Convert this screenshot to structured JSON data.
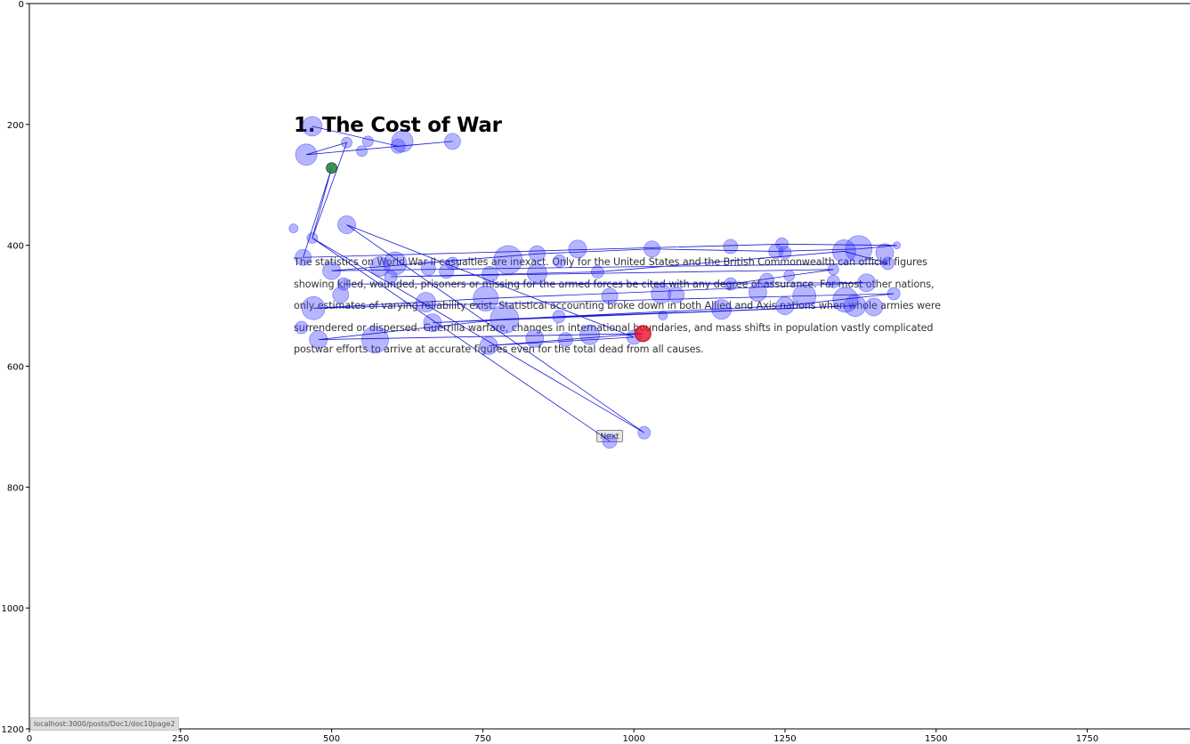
{
  "page": {
    "heading": "1. The Cost of War",
    "body_lines": [
      "The statistics on World War II casualties are inexact. Only for the United States and the British Commonwealth can official figures",
      "showing killed, wounded, prisoners or missing for the armed forces be cited with any degree of assurance. For most other nations,",
      "only estimates of varying reliability exist. Statistical accounting broke down in both Allied and Axis nations when whole armies were",
      "surrendered or dispersed. Guerrilla warfare, changes in international boundaries, and mass shifts in population vastly complicated",
      "postwar efforts to arrive at accurate figures even for the total dead from all causes."
    ],
    "next_button_label": "Next",
    "status_url": "localhost:3000/posts/Doc1/doc10page2"
  },
  "colors": {
    "fixation": "#4040ff",
    "scanpath": "#0000cc",
    "start_point": "#1e7a3a",
    "end_point": "#e8102a"
  },
  "chart_data": {
    "type": "scatter",
    "title": "",
    "xlabel": "",
    "ylabel": "",
    "xlim": [
      0,
      1920
    ],
    "ylim": [
      1200,
      0
    ],
    "xticks": [
      0,
      250,
      500,
      750,
      1000,
      1250,
      1500,
      1750
    ],
    "yticks": [
      0,
      200,
      400,
      600,
      800,
      1000,
      1200
    ],
    "grid": false,
    "start": {
      "x": 500,
      "y": 272
    },
    "end": {
      "x": 1015,
      "y": 546
    },
    "fixations": [
      {
        "x": 468,
        "y": 203,
        "d": 11
      },
      {
        "x": 525,
        "y": 230,
        "d": 6
      },
      {
        "x": 560,
        "y": 228,
        "d": 6
      },
      {
        "x": 610,
        "y": 236,
        "d": 8
      },
      {
        "x": 617,
        "y": 228,
        "d": 12
      },
      {
        "x": 700,
        "y": 228,
        "d": 9
      },
      {
        "x": 458,
        "y": 250,
        "d": 12
      },
      {
        "x": 550,
        "y": 244,
        "d": 6
      },
      {
        "x": 437,
        "y": 372,
        "d": 5
      },
      {
        "x": 525,
        "y": 366,
        "d": 10
      },
      {
        "x": 468,
        "y": 388,
        "d": 6
      },
      {
        "x": 453,
        "y": 420,
        "d": 9
      },
      {
        "x": 500,
        "y": 442,
        "d": 10
      },
      {
        "x": 520,
        "y": 464,
        "d": 7
      },
      {
        "x": 515,
        "y": 482,
        "d": 9
      },
      {
        "x": 470,
        "y": 504,
        "d": 13
      },
      {
        "x": 450,
        "y": 536,
        "d": 7
      },
      {
        "x": 478,
        "y": 556,
        "d": 10
      },
      {
        "x": 572,
        "y": 556,
        "d": 15
      },
      {
        "x": 580,
        "y": 435,
        "d": 11
      },
      {
        "x": 605,
        "y": 430,
        "d": 13
      },
      {
        "x": 598,
        "y": 452,
        "d": 7
      },
      {
        "x": 660,
        "y": 438,
        "d": 8
      },
      {
        "x": 690,
        "y": 443,
        "d": 8
      },
      {
        "x": 700,
        "y": 430,
        "d": 7
      },
      {
        "x": 656,
        "y": 494,
        "d": 11
      },
      {
        "x": 667,
        "y": 528,
        "d": 10
      },
      {
        "x": 762,
        "y": 448,
        "d": 9
      },
      {
        "x": 792,
        "y": 424,
        "d": 16
      },
      {
        "x": 840,
        "y": 414,
        "d": 9
      },
      {
        "x": 840,
        "y": 446,
        "d": 11
      },
      {
        "x": 877,
        "y": 426,
        "d": 7
      },
      {
        "x": 907,
        "y": 406,
        "d": 10
      },
      {
        "x": 940,
        "y": 444,
        "d": 7
      },
      {
        "x": 755,
        "y": 488,
        "d": 14
      },
      {
        "x": 786,
        "y": 522,
        "d": 16
      },
      {
        "x": 760,
        "y": 566,
        "d": 10
      },
      {
        "x": 836,
        "y": 554,
        "d": 10
      },
      {
        "x": 876,
        "y": 518,
        "d": 7
      },
      {
        "x": 887,
        "y": 556,
        "d": 8
      },
      {
        "x": 927,
        "y": 548,
        "d": 11
      },
      {
        "x": 960,
        "y": 484,
        "d": 9
      },
      {
        "x": 1000,
        "y": 552,
        "d": 8
      },
      {
        "x": 1030,
        "y": 406,
        "d": 9
      },
      {
        "x": 1045,
        "y": 480,
        "d": 11
      },
      {
        "x": 1070,
        "y": 482,
        "d": 9
      },
      {
        "x": 1048,
        "y": 516,
        "d": 5
      },
      {
        "x": 1145,
        "y": 506,
        "d": 11
      },
      {
        "x": 1160,
        "y": 402,
        "d": 8
      },
      {
        "x": 1160,
        "y": 464,
        "d": 7
      },
      {
        "x": 1205,
        "y": 478,
        "d": 10
      },
      {
        "x": 1220,
        "y": 458,
        "d": 8
      },
      {
        "x": 1235,
        "y": 410,
        "d": 8
      },
      {
        "x": 1245,
        "y": 398,
        "d": 7
      },
      {
        "x": 1250,
        "y": 412,
        "d": 7
      },
      {
        "x": 1250,
        "y": 500,
        "d": 10
      },
      {
        "x": 1257,
        "y": 450,
        "d": 6
      },
      {
        "x": 1282,
        "y": 484,
        "d": 13
      },
      {
        "x": 1330,
        "y": 440,
        "d": 6
      },
      {
        "x": 1330,
        "y": 460,
        "d": 7
      },
      {
        "x": 1348,
        "y": 410,
        "d": 13
      },
      {
        "x": 1372,
        "y": 406,
        "d": 15
      },
      {
        "x": 1350,
        "y": 490,
        "d": 14
      },
      {
        "x": 1366,
        "y": 500,
        "d": 12
      },
      {
        "x": 1385,
        "y": 462,
        "d": 10
      },
      {
        "x": 1397,
        "y": 502,
        "d": 10
      },
      {
        "x": 1415,
        "y": 412,
        "d": 10
      },
      {
        "x": 1420,
        "y": 430,
        "d": 7
      },
      {
        "x": 1430,
        "y": 480,
        "d": 7
      },
      {
        "x": 1435,
        "y": 400,
        "d": 4
      },
      {
        "x": 960,
        "y": 724,
        "d": 8
      },
      {
        "x": 1017,
        "y": 710,
        "d": 7
      }
    ],
    "scanpath": [
      {
        "x": 468,
        "y": 203
      },
      {
        "x": 610,
        "y": 236
      },
      {
        "x": 700,
        "y": 228
      },
      {
        "x": 458,
        "y": 250
      },
      {
        "x": 525,
        "y": 230
      },
      {
        "x": 468,
        "y": 388
      },
      {
        "x": 500,
        "y": 272
      },
      {
        "x": 453,
        "y": 420
      },
      {
        "x": 1245,
        "y": 398
      },
      {
        "x": 1435,
        "y": 400
      },
      {
        "x": 1372,
        "y": 406
      },
      {
        "x": 1235,
        "y": 410
      },
      {
        "x": 1030,
        "y": 406
      },
      {
        "x": 840,
        "y": 414
      },
      {
        "x": 500,
        "y": 442
      },
      {
        "x": 1420,
        "y": 430
      },
      {
        "x": 1348,
        "y": 410
      },
      {
        "x": 940,
        "y": 444
      },
      {
        "x": 598,
        "y": 452
      },
      {
        "x": 1330,
        "y": 440
      },
      {
        "x": 1160,
        "y": 464
      },
      {
        "x": 520,
        "y": 464
      },
      {
        "x": 1385,
        "y": 462
      },
      {
        "x": 755,
        "y": 488
      },
      {
        "x": 470,
        "y": 504
      },
      {
        "x": 1430,
        "y": 480
      },
      {
        "x": 1250,
        "y": 500
      },
      {
        "x": 667,
        "y": 528
      },
      {
        "x": 1366,
        "y": 500
      },
      {
        "x": 786,
        "y": 522
      },
      {
        "x": 478,
        "y": 556
      },
      {
        "x": 1015,
        "y": 546
      },
      {
        "x": 760,
        "y": 566
      },
      {
        "x": 1000,
        "y": 552
      },
      {
        "x": 525,
        "y": 366
      },
      {
        "x": 1017,
        "y": 710
      },
      {
        "x": 468,
        "y": 388
      },
      {
        "x": 960,
        "y": 724
      }
    ]
  }
}
